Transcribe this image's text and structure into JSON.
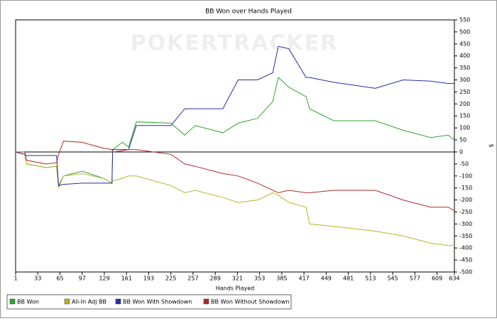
{
  "chart_data": {
    "type": "line",
    "title": "BB Won over Hands Played",
    "watermark": "POKERTRACKER",
    "x_label": "Hands Played",
    "y_label": "$",
    "x": [
      1,
      14,
      17,
      45,
      60,
      63,
      70,
      97,
      128,
      140,
      141,
      155,
      164,
      175,
      225,
      245,
      260,
      300,
      322,
      350,
      372,
      380,
      395,
      420,
      425,
      460,
      520,
      560,
      600,
      625,
      634
    ],
    "series": [
      {
        "name": "BB Won",
        "color": "#2ea62e",
        "values": [
          0,
          -10,
          -50,
          -65,
          -60,
          -140,
          -100,
          -80,
          -110,
          -130,
          10,
          40,
          20,
          125,
          120,
          70,
          110,
          80,
          120,
          140,
          210,
          310,
          270,
          230,
          180,
          130,
          130,
          90,
          60,
          70,
          50
        ]
      },
      {
        "name": "All-In Adj BB",
        "color": "#b5b52a",
        "values": [
          0,
          -10,
          -50,
          -65,
          -60,
          -150,
          -100,
          -90,
          -110,
          -130,
          -120,
          -110,
          -100,
          -100,
          -140,
          -170,
          -160,
          -190,
          -210,
          -200,
          -170,
          -180,
          -210,
          -230,
          -300,
          -310,
          -330,
          -350,
          -380,
          -390,
          -390
        ]
      },
      {
        "name": "BB Won With Showdown",
        "color": "#2a2aa8",
        "values": [
          0,
          -10,
          -15,
          -15,
          -15,
          -140,
          -135,
          -130,
          -130,
          -130,
          10,
          10,
          10,
          110,
          110,
          180,
          180,
          180,
          300,
          300,
          330,
          440,
          430,
          310,
          310,
          290,
          265,
          300,
          295,
          285,
          285
        ]
      },
      {
        "name": "BB Won Without Showdown",
        "color": "#b02a2a",
        "values": [
          0,
          0,
          -35,
          -50,
          -45,
          -10,
          45,
          40,
          15,
          10,
          0,
          5,
          10,
          10,
          -10,
          -50,
          -60,
          -90,
          -100,
          -130,
          -160,
          -170,
          -160,
          -170,
          -170,
          -160,
          -160,
          -200,
          -230,
          -230,
          -245
        ]
      }
    ],
    "xlim": [
      1,
      634
    ],
    "xticks": [
      1,
      33,
      65,
      97,
      129,
      161,
      193,
      225,
      257,
      289,
      321,
      353,
      385,
      417,
      449,
      481,
      513,
      545,
      577,
      609,
      634
    ],
    "ylim": [
      -500,
      550
    ],
    "yticks": [
      -500,
      -450,
      -400,
      -350,
      -300,
      -250,
      -200,
      -150,
      -100,
      -50,
      0,
      50,
      100,
      150,
      200,
      250,
      300,
      350,
      400,
      450,
      500,
      550
    ]
  }
}
